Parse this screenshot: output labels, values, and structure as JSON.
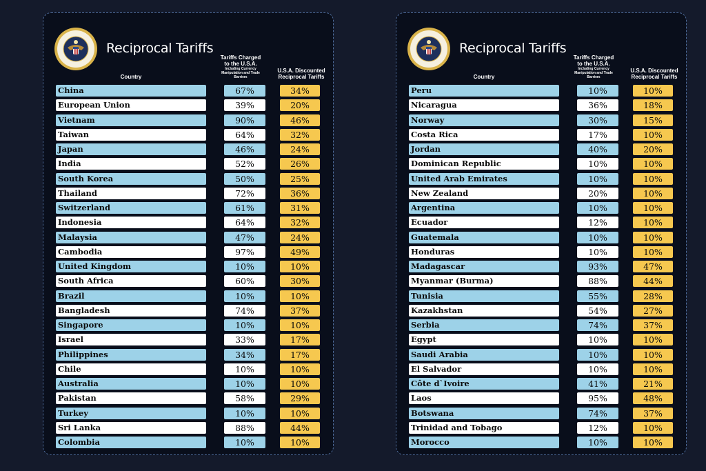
{
  "title": "Reciprocal Tariffs",
  "seal_text": "SEAL OF THE PRESIDENT OF THE UNITED STATES",
  "headers": {
    "country": "Country",
    "charged": "Tariffs Charged to the U.S.A.",
    "charged_sub": "Including Currency Manipulation and Trade Barriers",
    "discounted": "U.S.A. Discounted Reciprocal Tariffs"
  },
  "colors": {
    "row_blue": "#9dd2e8",
    "row_white": "#ffffff",
    "reciprocal_yellow": "#f6c84f",
    "background": "#090e1b"
  },
  "left_table": [
    {
      "country": "China",
      "charged": "67%",
      "reciprocal": "34%"
    },
    {
      "country": "European Union",
      "charged": "39%",
      "reciprocal": "20%"
    },
    {
      "country": "Vietnam",
      "charged": "90%",
      "reciprocal": "46%"
    },
    {
      "country": "Taiwan",
      "charged": "64%",
      "reciprocal": "32%"
    },
    {
      "country": "Japan",
      "charged": "46%",
      "reciprocal": "24%"
    },
    {
      "country": "India",
      "charged": "52%",
      "reciprocal": "26%"
    },
    {
      "country": "South Korea",
      "charged": "50%",
      "reciprocal": "25%"
    },
    {
      "country": "Thailand",
      "charged": "72%",
      "reciprocal": "36%"
    },
    {
      "country": "Switzerland",
      "charged": "61%",
      "reciprocal": "31%"
    },
    {
      "country": "Indonesia",
      "charged": "64%",
      "reciprocal": "32%"
    },
    {
      "country": "Malaysia",
      "charged": "47%",
      "reciprocal": "24%"
    },
    {
      "country": "Cambodia",
      "charged": "97%",
      "reciprocal": "49%"
    },
    {
      "country": "United Kingdom",
      "charged": "10%",
      "reciprocal": "10%"
    },
    {
      "country": "South Africa",
      "charged": "60%",
      "reciprocal": "30%"
    },
    {
      "country": "Brazil",
      "charged": "10%",
      "reciprocal": "10%"
    },
    {
      "country": "Bangladesh",
      "charged": "74%",
      "reciprocal": "37%"
    },
    {
      "country": "Singapore",
      "charged": "10%",
      "reciprocal": "10%"
    },
    {
      "country": "Israel",
      "charged": "33%",
      "reciprocal": "17%"
    },
    {
      "country": "Philippines",
      "charged": "34%",
      "reciprocal": "17%"
    },
    {
      "country": "Chile",
      "charged": "10%",
      "reciprocal": "10%"
    },
    {
      "country": "Australia",
      "charged": "10%",
      "reciprocal": "10%"
    },
    {
      "country": "Pakistan",
      "charged": "58%",
      "reciprocal": "29%"
    },
    {
      "country": "Turkey",
      "charged": "10%",
      "reciprocal": "10%"
    },
    {
      "country": "Sri Lanka",
      "charged": "88%",
      "reciprocal": "44%"
    },
    {
      "country": "Colombia",
      "charged": "10%",
      "reciprocal": "10%"
    }
  ],
  "right_table": [
    {
      "country": "Peru",
      "charged": "10%",
      "reciprocal": "10%"
    },
    {
      "country": "Nicaragua",
      "charged": "36%",
      "reciprocal": "18%"
    },
    {
      "country": "Norway",
      "charged": "30%",
      "reciprocal": "15%"
    },
    {
      "country": "Costa Rica",
      "charged": "17%",
      "reciprocal": "10%"
    },
    {
      "country": "Jordan",
      "charged": "40%",
      "reciprocal": "20%"
    },
    {
      "country": "Dominican Republic",
      "charged": "10%",
      "reciprocal": "10%"
    },
    {
      "country": "United Arab Emirates",
      "charged": "10%",
      "reciprocal": "10%"
    },
    {
      "country": "New Zealand",
      "charged": "20%",
      "reciprocal": "10%"
    },
    {
      "country": "Argentina",
      "charged": "10%",
      "reciprocal": "10%"
    },
    {
      "country": "Ecuador",
      "charged": "12%",
      "reciprocal": "10%"
    },
    {
      "country": "Guatemala",
      "charged": "10%",
      "reciprocal": "10%"
    },
    {
      "country": "Honduras",
      "charged": "10%",
      "reciprocal": "10%"
    },
    {
      "country": "Madagascar",
      "charged": "93%",
      "reciprocal": "47%"
    },
    {
      "country": "Myanmar (Burma)",
      "charged": "88%",
      "reciprocal": "44%"
    },
    {
      "country": "Tunisia",
      "charged": "55%",
      "reciprocal": "28%"
    },
    {
      "country": "Kazakhstan",
      "charged": "54%",
      "reciprocal": "27%"
    },
    {
      "country": "Serbia",
      "charged": "74%",
      "reciprocal": "37%"
    },
    {
      "country": "Egypt",
      "charged": "10%",
      "reciprocal": "10%"
    },
    {
      "country": "Saudi Arabia",
      "charged": "10%",
      "reciprocal": "10%"
    },
    {
      "country": "El Salvador",
      "charged": "10%",
      "reciprocal": "10%"
    },
    {
      "country": "Côte d`Ivoire",
      "charged": "41%",
      "reciprocal": "21%"
    },
    {
      "country": "Laos",
      "charged": "95%",
      "reciprocal": "48%"
    },
    {
      "country": "Botswana",
      "charged": "74%",
      "reciprocal": "37%"
    },
    {
      "country": "Trinidad and Tobago",
      "charged": "12%",
      "reciprocal": "10%"
    },
    {
      "country": "Morocco",
      "charged": "10%",
      "reciprocal": "10%"
    }
  ]
}
